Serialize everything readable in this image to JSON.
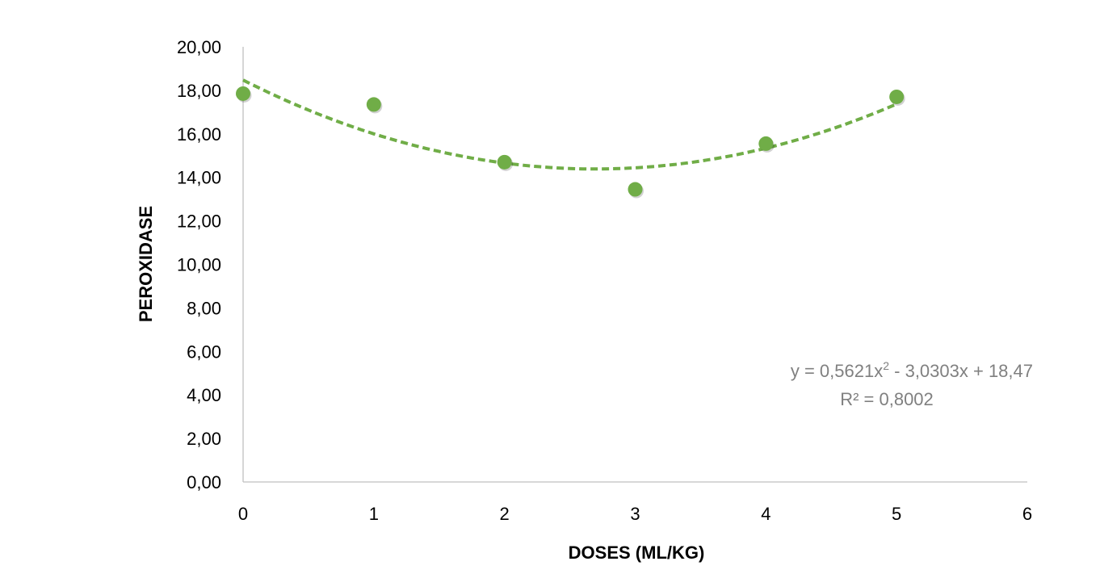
{
  "chart_data": {
    "type": "scatter",
    "title": "",
    "xlabel": "DOSES (ML/KG)",
    "ylabel": "PEROXIDASE",
    "xlim": [
      0,
      6
    ],
    "ylim": [
      0,
      20
    ],
    "x_ticks": [
      "0",
      "1",
      "2",
      "3",
      "4",
      "5",
      "6"
    ],
    "y_ticks": [
      "0,00",
      "2,00",
      "4,00",
      "6,00",
      "8,00",
      "10,00",
      "12,00",
      "14,00",
      "16,00",
      "18,00",
      "20,00"
    ],
    "grid": false,
    "legend": "none",
    "series": [
      {
        "x": [
          0,
          1,
          2,
          3,
          4,
          5
        ],
        "y": [
          17.85,
          17.35,
          14.7,
          13.45,
          15.55,
          17.7
        ],
        "color": "#70AD47"
      }
    ],
    "trendline": {
      "type": "polynomial",
      "coefficients": {
        "a": 0.5621,
        "b": -3.0303,
        "c": 18.47
      },
      "x_range": [
        0,
        5
      ],
      "color": "#70AD47",
      "equation_label": {
        "prefix": "y = 0,5621x",
        "superscript": "2",
        "suffix": " - 3,0303x + 18,47"
      },
      "r2_label": "R² = 0,8002"
    }
  }
}
